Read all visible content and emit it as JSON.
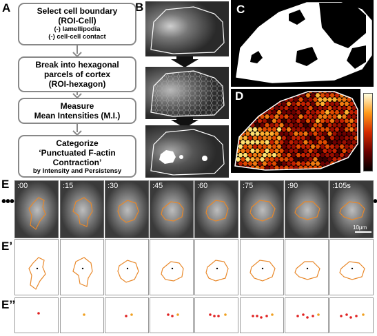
{
  "panels": {
    "A": "A",
    "B": "B",
    "C": "C",
    "D": "D",
    "E": "E",
    "E1": "E’",
    "E2": "E’’"
  },
  "flow": {
    "step1_title": "Select cell boundary",
    "step1_sub": "(ROI-Cell)",
    "step1_note1": "(-) lamellipodia",
    "step1_note2": "(-) cell-cell contact",
    "step2_line1": "Break into hexagonal",
    "step2_line2": "parcels of cortex",
    "step2_line3": "(ROI-hexagon)",
    "step3_line1": "Measure",
    "step3_line2": "Mean Intensities (M.I.)",
    "step4_line1": "Categorize",
    "step4_line2": "‘Punctuated F-actin",
    "step4_line3": "Contraction’",
    "step4_line4": "by Intensity and Persistensy"
  },
  "timelapse": {
    "times": [
      ":00",
      ":15",
      ":30",
      ":45",
      ":60",
      ":75",
      ":90",
      ":105s"
    ],
    "scalebar": "10μm",
    "ellipsis_left": "•••",
    "ellipsis_right": "•"
  },
  "colors": {
    "outline": "#e8882a",
    "dot": "#e02020",
    "arrow": "#111111"
  }
}
